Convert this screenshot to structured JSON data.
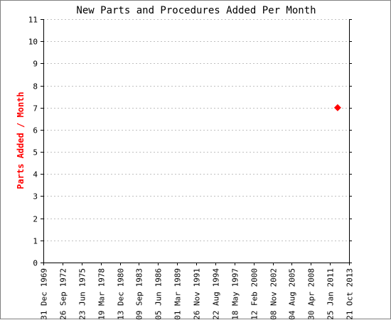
{
  "chart_data": {
    "type": "scatter",
    "title": "New Parts and Procedures Added Per Month",
    "xlabel": "",
    "ylabel": "Parts Added / Month",
    "ylim": [
      0,
      11
    ],
    "yticks": [
      0,
      1,
      2,
      3,
      4,
      5,
      6,
      7,
      8,
      9,
      10,
      11
    ],
    "xlim": [
      "1969-12-31",
      "2013-10-21"
    ],
    "xticks": [
      {
        "date": "1969-12-31",
        "label": "31 Dec 1969"
      },
      {
        "date": "1972-09-26",
        "label": "26 Sep 1972"
      },
      {
        "date": "1975-06-23",
        "label": "23 Jun 1975"
      },
      {
        "date": "1978-03-19",
        "label": "19 Mar 1978"
      },
      {
        "date": "1980-12-13",
        "label": "13 Dec 1980"
      },
      {
        "date": "1983-09-09",
        "label": "09 Sep 1983"
      },
      {
        "date": "1986-06-05",
        "label": "05 Jun 1986"
      },
      {
        "date": "1989-03-01",
        "label": "01 Mar 1989"
      },
      {
        "date": "1991-11-26",
        "label": "26 Nov 1991"
      },
      {
        "date": "1994-08-22",
        "label": "22 Aug 1994"
      },
      {
        "date": "1997-05-18",
        "label": "18 May 1997"
      },
      {
        "date": "2000-02-12",
        "label": "12 Feb 2000"
      },
      {
        "date": "2002-11-08",
        "label": "08 Nov 2002"
      },
      {
        "date": "2005-08-04",
        "label": "04 Aug 2005"
      },
      {
        "date": "2008-04-30",
        "label": "30 Apr 2008"
      },
      {
        "date": "2011-01-25",
        "label": "25 Jan 2011"
      },
      {
        "date": "2013-10-21",
        "label": "21 Oct 2013"
      }
    ],
    "series": [
      {
        "points": [
          {
            "x": "2012-03-01",
            "y": 7
          }
        ],
        "color": "#ff0000",
        "marker": "diamond"
      }
    ],
    "grid": {
      "horizontal": true,
      "style": "dotted"
    },
    "colors": {
      "title": "#000000",
      "ylabel": "#ff0000",
      "axis": "#000000",
      "grid": "#c0c0c0"
    }
  }
}
